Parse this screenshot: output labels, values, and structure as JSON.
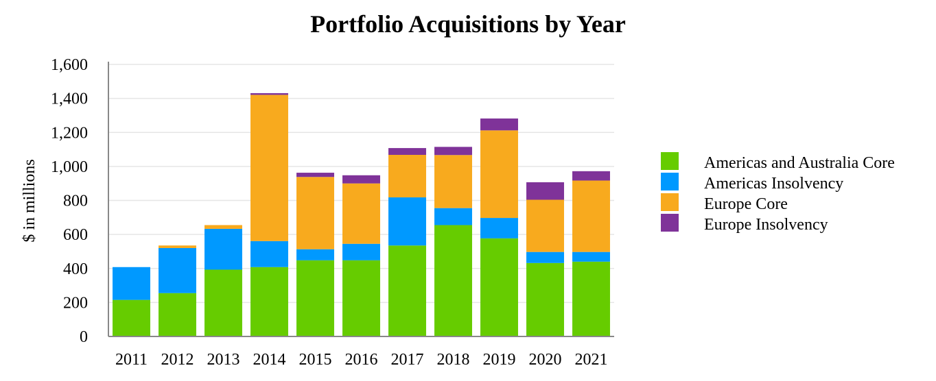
{
  "chart_data": {
    "type": "bar",
    "stacked": true,
    "title": "Portfolio Acquisitions by Year",
    "xlabel": "",
    "ylabel": "$ in millions",
    "ylim": [
      0,
      1600
    ],
    "yticks": [
      0,
      200,
      400,
      600,
      800,
      1000,
      1200,
      1400,
      1600
    ],
    "ytick_labels": [
      "0",
      "200",
      "400",
      "600",
      "800",
      "1,000",
      "1,200",
      "1,400",
      "1,600"
    ],
    "grid": true,
    "legend_position": "right",
    "categories": [
      "2011",
      "2012",
      "2013",
      "2014",
      "2015",
      "2016",
      "2017",
      "2018",
      "2019",
      "2020",
      "2021"
    ],
    "series": [
      {
        "name": "Americas and Australia Core",
        "color": "#66cc00",
        "values": [
          215,
          255,
          393,
          408,
          448,
          448,
          535,
          655,
          577,
          432,
          440
        ]
      },
      {
        "name": "Americas Insolvency",
        "color": "#0099ff",
        "values": [
          193,
          265,
          240,
          153,
          65,
          97,
          283,
          100,
          120,
          65,
          57
        ]
      },
      {
        "name": "Europe Core",
        "color": "#f8aa1e",
        "values": [
          0,
          15,
          22,
          860,
          425,
          355,
          250,
          312,
          515,
          307,
          420
        ]
      },
      {
        "name": "Europe Insolvency",
        "color": "#7f3399",
        "values": [
          0,
          0,
          0,
          10,
          25,
          48,
          40,
          48,
          70,
          103,
          55
        ]
      }
    ]
  }
}
